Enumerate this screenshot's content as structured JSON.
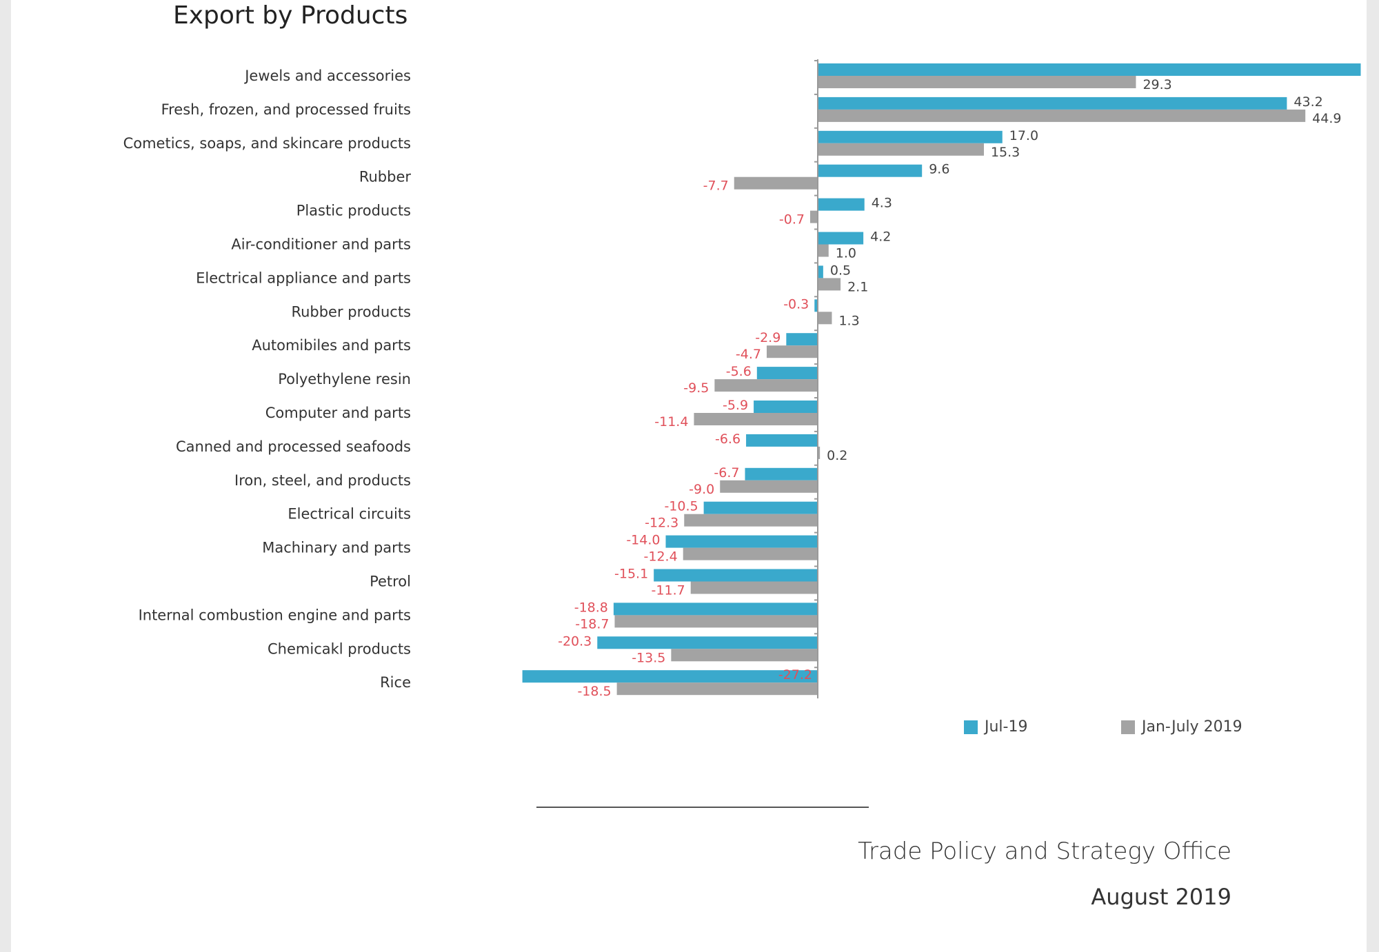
{
  "title": "Export by Products",
  "chart_data": {
    "type": "bar",
    "orientation": "horizontal",
    "categories": [
      "Jewels and accessories",
      "Fresh, frozen, and processed fruits",
      "Cometics, soaps, and skincare products",
      "Rubber",
      "Plastic products",
      "Air-conditioner and parts",
      "Electrical appliance and parts",
      "Rubber products",
      "Automibiles and parts",
      "Polyethylene resin",
      "Computer and parts",
      "Canned and processed seafoods",
      "Iron, steel, and products",
      "Electrical circuits",
      "Machinary and parts",
      "Petrol",
      "Internal combustion engine and parts",
      "Chemicakl products",
      "Rice"
    ],
    "series": [
      {
        "name": "Jul-19",
        "color": "#3aa9cc",
        "values": [
          50.0,
          43.2,
          17.0,
          9.6,
          4.3,
          4.2,
          0.5,
          -0.3,
          -2.9,
          -5.6,
          -5.9,
          -6.6,
          -6.7,
          -10.5,
          -14.0,
          -15.1,
          -18.8,
          -20.3,
          -27.2
        ],
        "labels": [
          "",
          "43.2",
          "17.0",
          "9.6",
          "4.3",
          "4.2",
          "0.5",
          "-0.3",
          "-2.9",
          "-5.6",
          "-5.9",
          "-6.6",
          "-6.7",
          "-10.5",
          "-14.0",
          "-15.1",
          "-18.8",
          "-20.3",
          "-27.2"
        ]
      },
      {
        "name": "Jan-July 2019",
        "color": "#a3a3a3",
        "values": [
          29.3,
          44.9,
          15.3,
          -7.7,
          -0.7,
          1.0,
          2.1,
          1.3,
          -4.7,
          -9.5,
          -11.4,
          0.2,
          -9.0,
          -12.3,
          -12.4,
          -11.7,
          -18.7,
          -13.5,
          -18.5
        ],
        "labels": [
          "29.3",
          "44.9",
          "15.3",
          "-7.7",
          "-0.7",
          "1.0",
          "2.1",
          "1.3",
          "-4.7",
          "-9.5",
          "-11.4",
          "0.2",
          "-9.0",
          "-12.3",
          "-12.4",
          "-11.7",
          "-18.7",
          "-13.5",
          "-18.5"
        ]
      }
    ],
    "positive_label_color": "#444444",
    "negative_label_color": "#e0505a",
    "grid": false,
    "legend": "bottom-right"
  },
  "footer": {
    "office": "Trade Policy and Strategy Office",
    "date": "August 2019"
  }
}
